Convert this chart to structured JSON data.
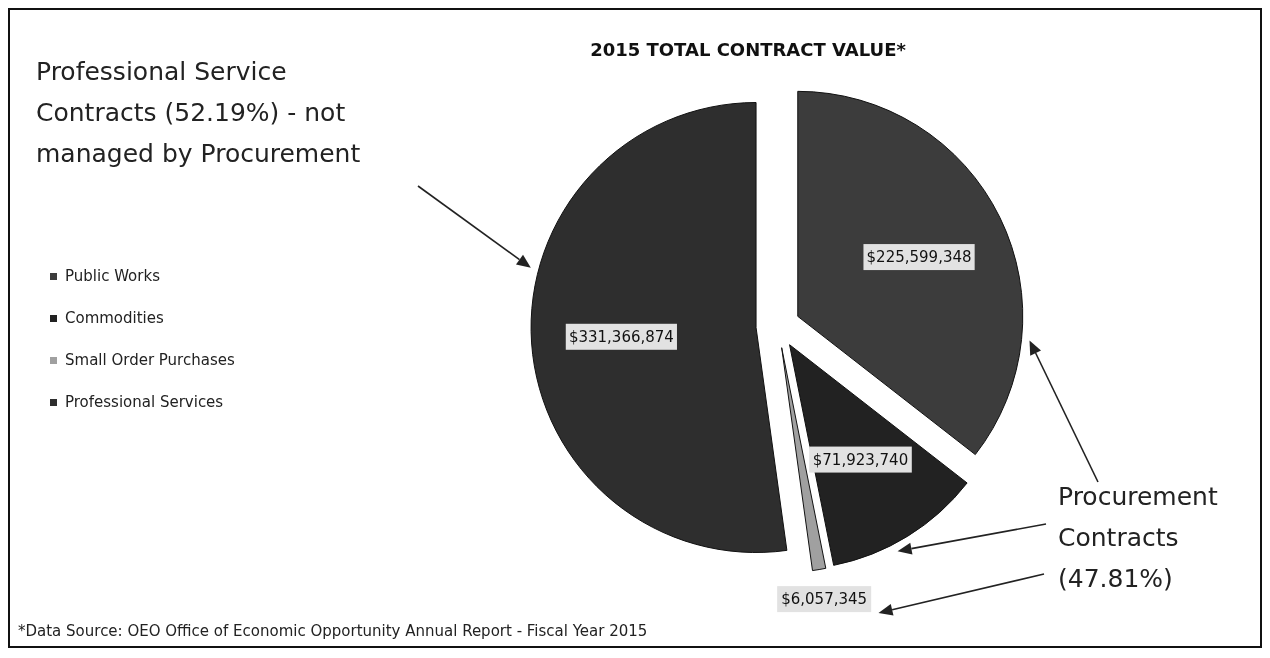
{
  "chart_data": {
    "type": "pie",
    "title": "2015 TOTAL CONTRACT VALUE*",
    "categories": [
      "Public Works",
      "Commodities",
      "Small Order Purchases",
      "Professional Services"
    ],
    "values": [
      225599348,
      71923740,
      6057345,
      331366874
    ],
    "value_labels": [
      "$225,599,348",
      "$71,923,740",
      "$6,057,345",
      "$331,366,874"
    ],
    "colors": [
      "#3c3c3c",
      "#222222",
      "#a0a0a0",
      "#2e2e2e"
    ],
    "legend": "left",
    "annotations": [
      "Professional Service Contracts (52.19%) - not managed by Procurement",
      "Procurement Contracts (47.81%)",
      "*Data Source: OEO Office of Economic Opportunity Annual Report - Fiscal Year 2015"
    ]
  }
}
